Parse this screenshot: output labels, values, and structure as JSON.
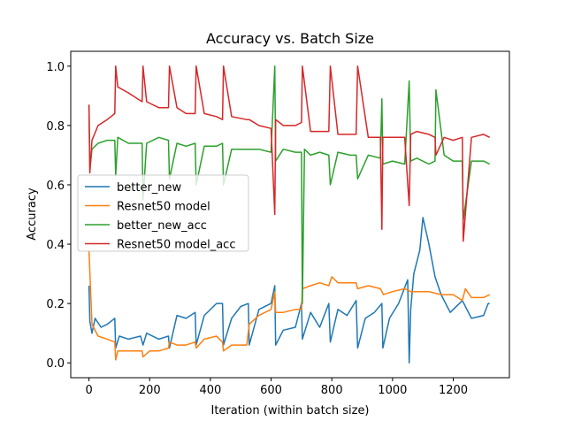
{
  "chart_data": {
    "type": "line",
    "title": "Accuracy vs. Batch Size",
    "xlabel": "Iteration (within batch size)",
    "ylabel": "Accuracy",
    "xlim": [
      -60,
      1385
    ],
    "ylim": [
      -0.05,
      1.05
    ],
    "xticks": [
      0,
      200,
      400,
      600,
      800,
      1000,
      1200
    ],
    "yticks": [
      0.0,
      0.2,
      0.4,
      0.6,
      0.8,
      1.0
    ],
    "xtick_labels": [
      "0",
      "200",
      "400",
      "600",
      "800",
      "1000",
      "1200"
    ],
    "ytick_labels": [
      "0.0",
      "0.2",
      "0.4",
      "0.6",
      "0.8",
      "1.0"
    ],
    "grid": false,
    "legend_position": "center-left",
    "series": [
      {
        "name": "better_new",
        "color": "#1f77b4",
        "x": [
          0,
          3,
          10,
          20,
          40,
          60,
          85,
          88,
          100,
          130,
          170,
          178,
          190,
          230,
          262,
          265,
          290,
          320,
          350,
          353,
          380,
          420,
          440,
          443,
          470,
          500,
          525,
          528,
          560,
          600,
          612,
          615,
          640,
          680,
          700,
          703,
          730,
          760,
          790,
          795,
          820,
          850,
          880,
          885,
          910,
          940,
          965,
          968,
          990,
          1020,
          1050,
          1055,
          1060,
          1070,
          1090,
          1100,
          1120,
          1140,
          1160,
          1190,
          1230,
          1260,
          1300,
          1315,
          1320
        ],
        "y": [
          0.26,
          0.14,
          0.1,
          0.15,
          0.12,
          0.13,
          0.15,
          0.05,
          0.09,
          0.08,
          0.09,
          0.06,
          0.1,
          0.08,
          0.09,
          0.05,
          0.16,
          0.15,
          0.17,
          0.06,
          0.16,
          0.2,
          0.2,
          0.06,
          0.15,
          0.19,
          0.2,
          0.06,
          0.18,
          0.2,
          0.26,
          0.06,
          0.11,
          0.12,
          0.2,
          0.08,
          0.17,
          0.12,
          0.2,
          0.07,
          0.18,
          0.16,
          0.21,
          0.05,
          0.15,
          0.17,
          0.2,
          0.05,
          0.15,
          0.2,
          0.28,
          0.0,
          0.18,
          0.3,
          0.38,
          0.49,
          0.4,
          0.29,
          0.23,
          0.17,
          0.21,
          0.15,
          0.16,
          0.2,
          0.2
        ]
      },
      {
        "name": "Resnet50 model",
        "color": "#ff7f0e",
        "x": [
          0,
          10,
          30,
          60,
          85,
          88,
          95,
          130,
          175,
          178,
          200,
          230,
          262,
          265,
          290,
          320,
          350,
          353,
          380,
          420,
          440,
          443,
          470,
          520,
          528,
          560,
          600,
          612,
          615,
          640,
          680,
          700,
          703,
          730,
          760,
          790,
          800,
          820,
          860,
          880,
          885,
          920,
          960,
          970,
          1000,
          1040,
          1060,
          1080,
          1120,
          1160,
          1200,
          1230,
          1240,
          1260,
          1300,
          1320
        ],
        "y": [
          0.38,
          0.13,
          0.09,
          0.08,
          0.07,
          0.01,
          0.04,
          0.04,
          0.04,
          0.02,
          0.04,
          0.04,
          0.05,
          0.07,
          0.06,
          0.06,
          0.07,
          0.05,
          0.08,
          0.09,
          0.07,
          0.04,
          0.06,
          0.06,
          0.13,
          0.16,
          0.18,
          0.24,
          0.17,
          0.17,
          0.18,
          0.18,
          0.25,
          0.26,
          0.27,
          0.26,
          0.29,
          0.27,
          0.27,
          0.27,
          0.25,
          0.26,
          0.25,
          0.23,
          0.24,
          0.25,
          0.24,
          0.24,
          0.24,
          0.23,
          0.23,
          0.21,
          0.25,
          0.22,
          0.22,
          0.23
        ]
      },
      {
        "name": "better_new_acc",
        "color": "#2ca02c",
        "x": [
          0,
          3,
          10,
          30,
          60,
          85,
          88,
          95,
          130,
          175,
          178,
          190,
          230,
          262,
          265,
          290,
          320,
          350,
          353,
          380,
          420,
          440,
          443,
          470,
          520,
          528,
          560,
          600,
          612,
          615,
          640,
          680,
          700,
          703,
          710,
          730,
          760,
          790,
          795,
          820,
          860,
          880,
          885,
          920,
          960,
          965,
          968,
          1000,
          1040,
          1055,
          1060,
          1080,
          1120,
          1140,
          1143,
          1170,
          1200,
          1230,
          1233,
          1260,
          1300,
          1320
        ],
        "y": [
          0.87,
          0.65,
          0.72,
          0.74,
          0.75,
          0.75,
          0.63,
          0.76,
          0.74,
          0.74,
          0.55,
          0.74,
          0.76,
          0.75,
          0.62,
          0.74,
          0.73,
          0.74,
          0.6,
          0.73,
          0.73,
          0.74,
          0.6,
          0.72,
          0.72,
          0.72,
          0.72,
          0.71,
          1.0,
          0.68,
          0.72,
          0.71,
          0.71,
          0.2,
          0.72,
          0.7,
          0.71,
          0.7,
          0.6,
          0.71,
          0.7,
          0.7,
          0.62,
          0.7,
          0.69,
          0.89,
          0.67,
          0.68,
          0.67,
          0.95,
          0.68,
          0.69,
          0.67,
          0.68,
          0.92,
          0.7,
          0.68,
          0.68,
          0.48,
          0.68,
          0.68,
          0.67
        ]
      },
      {
        "name": "Resnet50 model_acc",
        "color": "#d62728",
        "x": [
          0,
          3,
          10,
          30,
          60,
          85,
          88,
          95,
          130,
          175,
          178,
          190,
          230,
          262,
          265,
          290,
          320,
          350,
          353,
          380,
          420,
          440,
          443,
          470,
          520,
          528,
          560,
          600,
          612,
          615,
          640,
          680,
          700,
          703,
          730,
          760,
          790,
          795,
          820,
          860,
          880,
          885,
          920,
          960,
          965,
          968,
          1000,
          1040,
          1055,
          1060,
          1080,
          1120,
          1140,
          1143,
          1170,
          1200,
          1230,
          1233,
          1260,
          1300,
          1320
        ],
        "y": [
          0.87,
          0.64,
          0.75,
          0.8,
          0.82,
          0.84,
          1.0,
          0.93,
          0.91,
          0.88,
          1.0,
          0.88,
          0.86,
          0.86,
          1.0,
          0.86,
          0.84,
          0.84,
          1.0,
          0.84,
          0.83,
          0.82,
          1.0,
          0.83,
          0.82,
          0.82,
          0.8,
          0.79,
          0.5,
          0.82,
          0.8,
          0.8,
          0.81,
          1.0,
          0.78,
          0.78,
          0.78,
          1.0,
          0.77,
          0.77,
          0.77,
          1.0,
          0.76,
          0.76,
          0.45,
          0.76,
          0.76,
          0.76,
          0.53,
          0.77,
          0.78,
          0.77,
          0.76,
          0.7,
          0.76,
          0.75,
          0.76,
          0.41,
          0.76,
          0.77,
          0.76
        ]
      }
    ]
  }
}
